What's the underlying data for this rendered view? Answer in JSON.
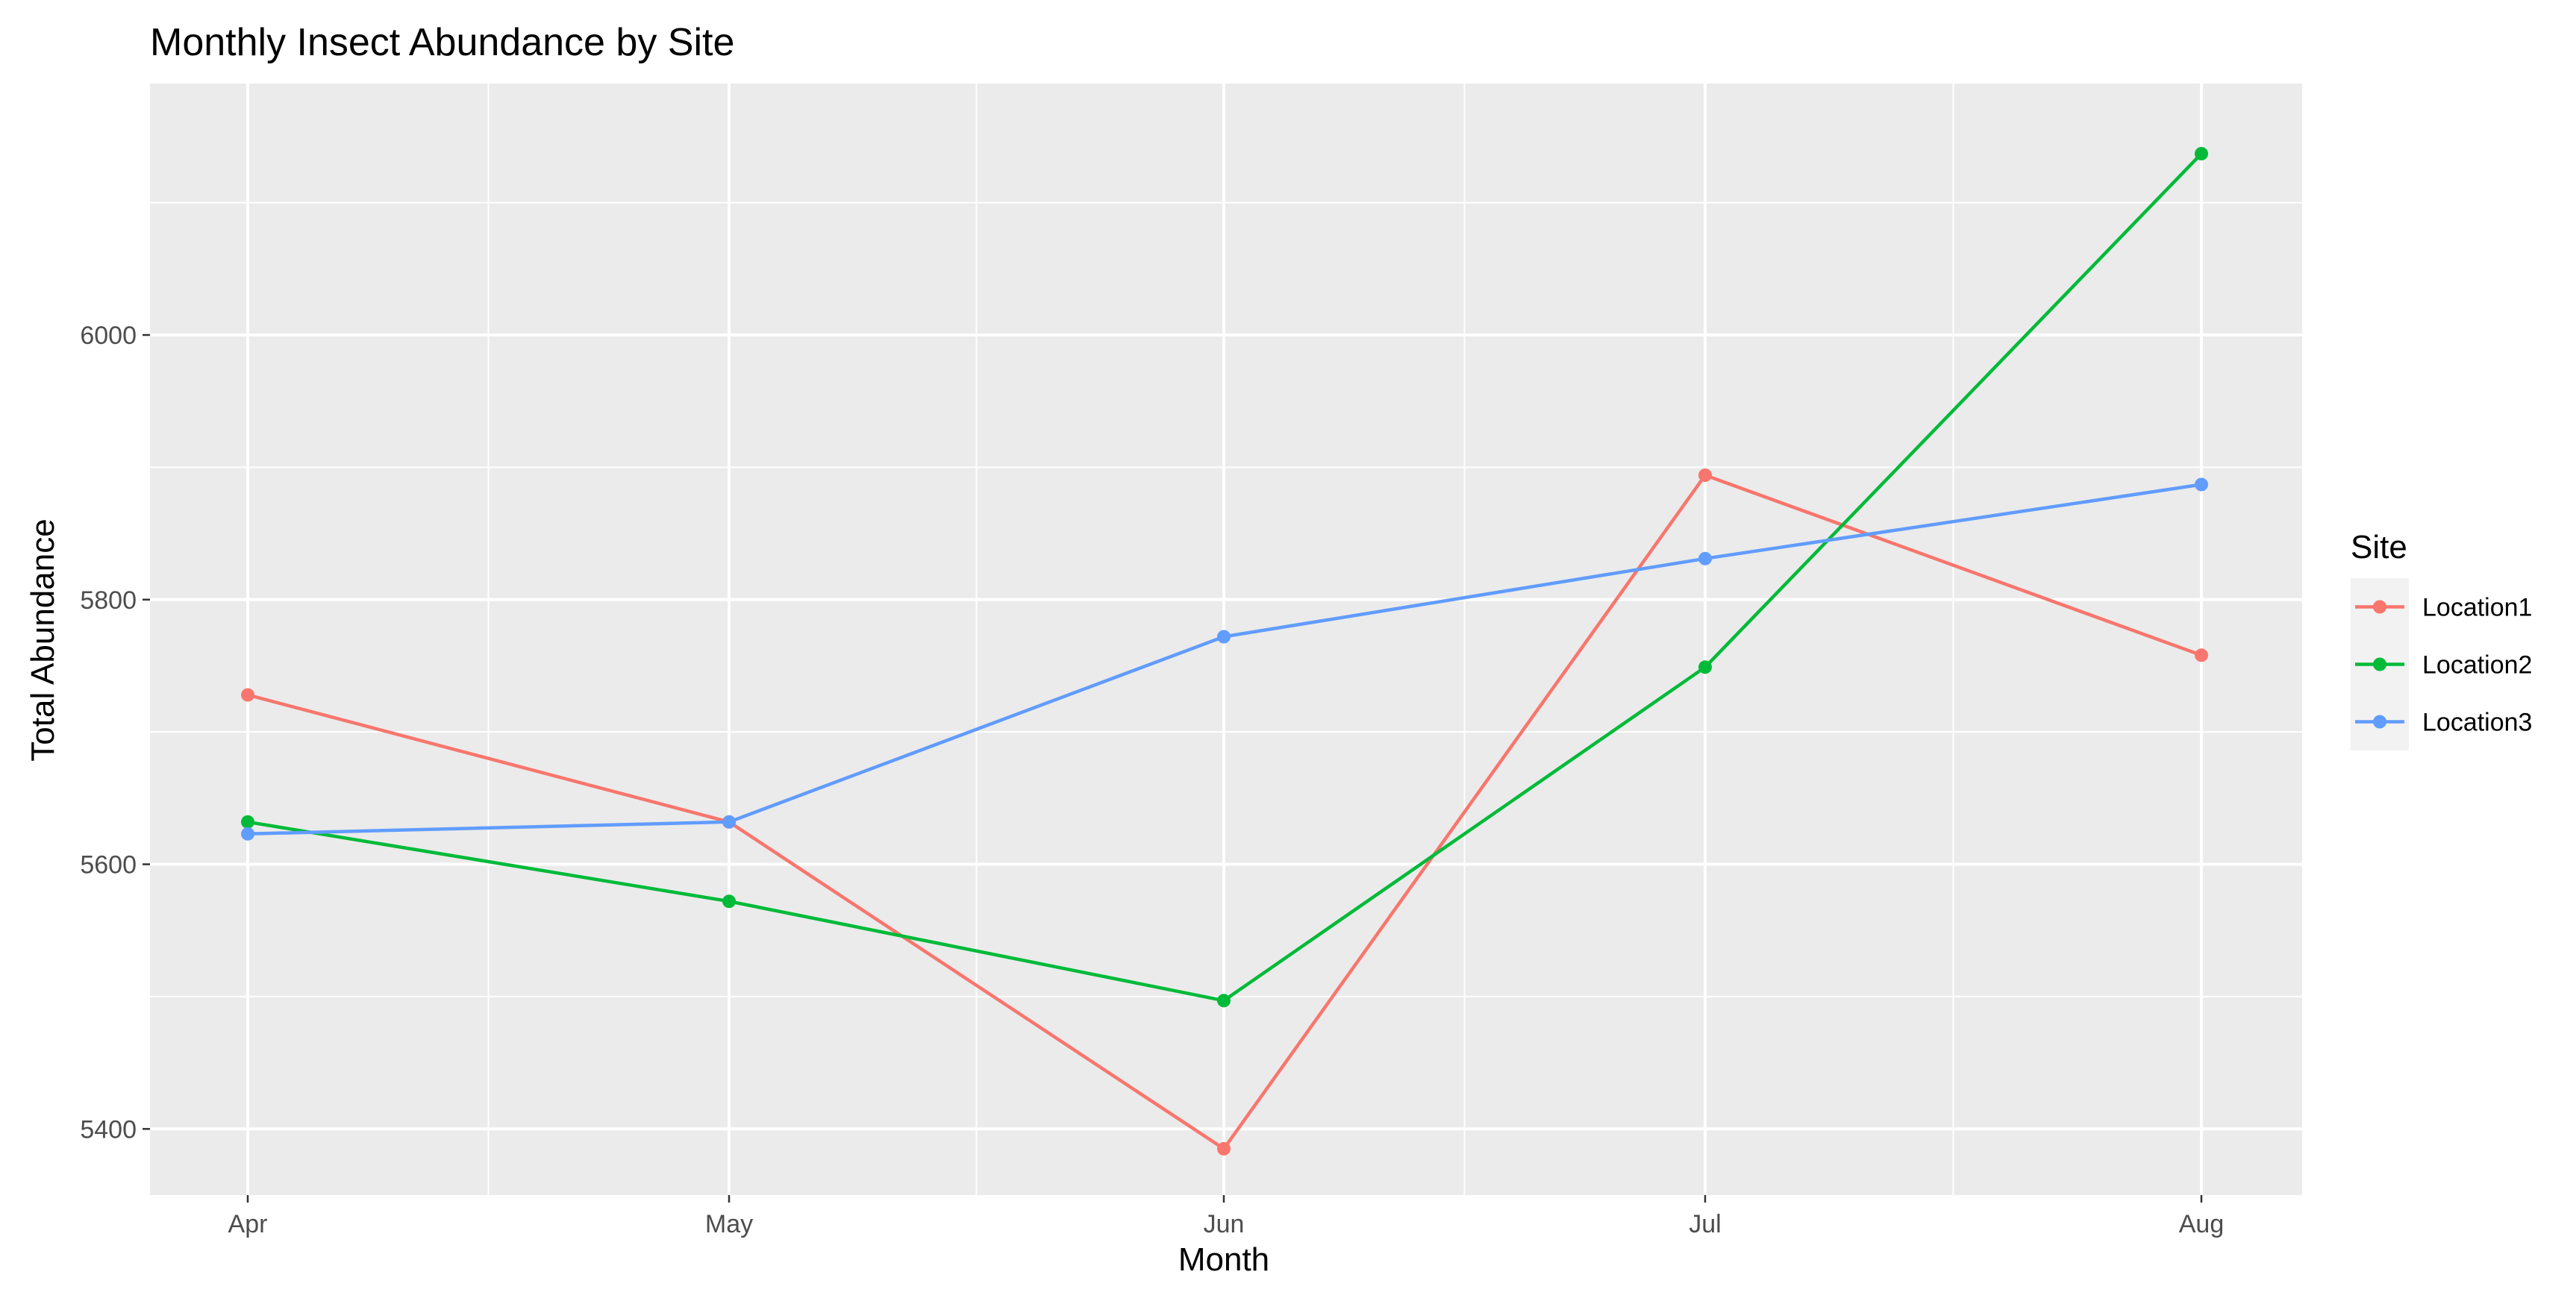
{
  "chart_data": {
    "type": "line",
    "title": "Monthly Insect Abundance by Site",
    "xlabel": "Month",
    "ylabel": "Total Abundance",
    "categories": [
      "Apr",
      "May",
      "Jun",
      "Jul",
      "Aug"
    ],
    "y_ticks": [
      5400,
      5600,
      5800,
      6000
    ],
    "ylim": [
      5350,
      6190
    ],
    "grid": true,
    "legend": {
      "title": "Site",
      "placement": "right"
    },
    "series": [
      {
        "name": "Location1",
        "color": "#F8766D",
        "values": [
          5728,
          5632,
          5385,
          5894,
          5758
        ]
      },
      {
        "name": "Location2",
        "color": "#00BA38",
        "values": [
          5632,
          5572,
          5497,
          5749,
          6137
        ]
      },
      {
        "name": "Location3",
        "color": "#619CFF",
        "values": [
          5623,
          5632,
          5772,
          5831,
          5887
        ]
      }
    ]
  },
  "style": {
    "panel_background": "#EBEBEB",
    "grid_color": "#FFFFFF",
    "tick_color": "#333333",
    "legend_key_background": "#F2F2F2"
  }
}
